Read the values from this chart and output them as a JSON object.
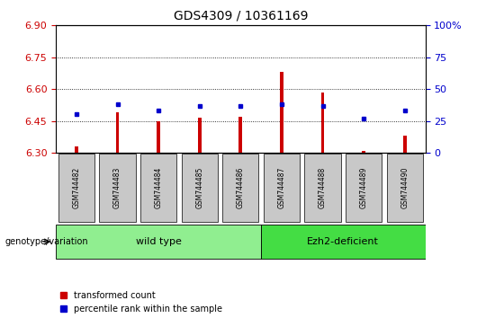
{
  "title": "GDS4309 / 10361169",
  "samples": [
    "GSM744482",
    "GSM744483",
    "GSM744484",
    "GSM744485",
    "GSM744486",
    "GSM744487",
    "GSM744488",
    "GSM744489",
    "GSM744490"
  ],
  "red_values": [
    6.33,
    6.49,
    6.45,
    6.465,
    6.47,
    6.68,
    6.585,
    6.31,
    6.38
  ],
  "blue_values": [
    30,
    38,
    33,
    37,
    37,
    38,
    37,
    27,
    33
  ],
  "ylim_left": [
    6.3,
    6.9
  ],
  "ylim_right": [
    0,
    100
  ],
  "left_ticks": [
    6.3,
    6.45,
    6.6,
    6.75,
    6.9
  ],
  "right_ticks": [
    0,
    25,
    50,
    75,
    100
  ],
  "right_tick_labels": [
    "0",
    "25",
    "50",
    "75",
    "100%"
  ],
  "group_label": "genotype/variation",
  "legend_red": "transformed count",
  "legend_blue": "percentile rank within the sample",
  "bar_color": "#cc0000",
  "dot_color": "#0000cc",
  "tick_color_left": "#cc0000",
  "tick_color_right": "#0000cc",
  "xlabel_area_color": "#c8c8c8",
  "wt_color": "#90ee90",
  "ezh_color": "#44dd44",
  "wt_label": "wild type",
  "ezh_label": "Ezh2-deficient",
  "wt_samples": 5,
  "ezh_samples": 4
}
